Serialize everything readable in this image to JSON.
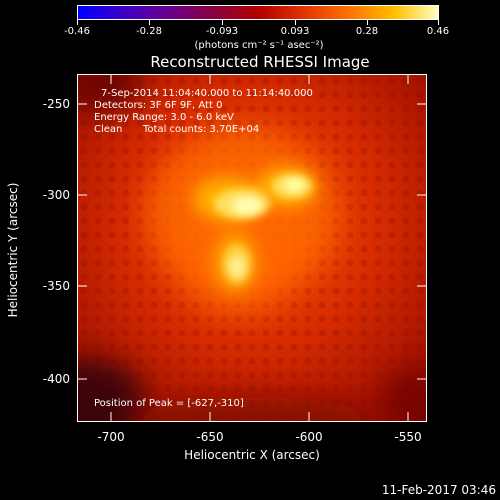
{
  "colorbar": {
    "ticks": [
      "-0.46",
      "-0.28",
      "-0.093",
      "0.093",
      "0.28",
      "0.46"
    ],
    "units": "(photons cm⁻² s⁻¹ asec⁻²)"
  },
  "title": "Reconstructed RHESSI Image",
  "annotations": {
    "time_range": "7-Sep-2014 11:04:40.000 to 11:14:40.000",
    "detectors": "Detectors: 3F 6F 9F, Att 0",
    "energy": "Energy Range: 3.0 - 6.0 keV",
    "clean": "Clean",
    "counts": "Total counts: 3.70E+04",
    "peak": "Position of Peak = [-627,-310]"
  },
  "axes": {
    "xlabel": "Heliocentric X (arcsec)",
    "ylabel": "Heliocentric Y (arcsec)",
    "xticks": [
      "-700",
      "-650",
      "-600",
      "-550"
    ],
    "yticks": [
      "-250",
      "-300",
      "-350",
      "-400"
    ]
  },
  "timestamp": "11-Feb-2017 03:46",
  "colors": {
    "background": "#000000",
    "image_base": "#c02000",
    "bright_core": "#ffffa0"
  }
}
